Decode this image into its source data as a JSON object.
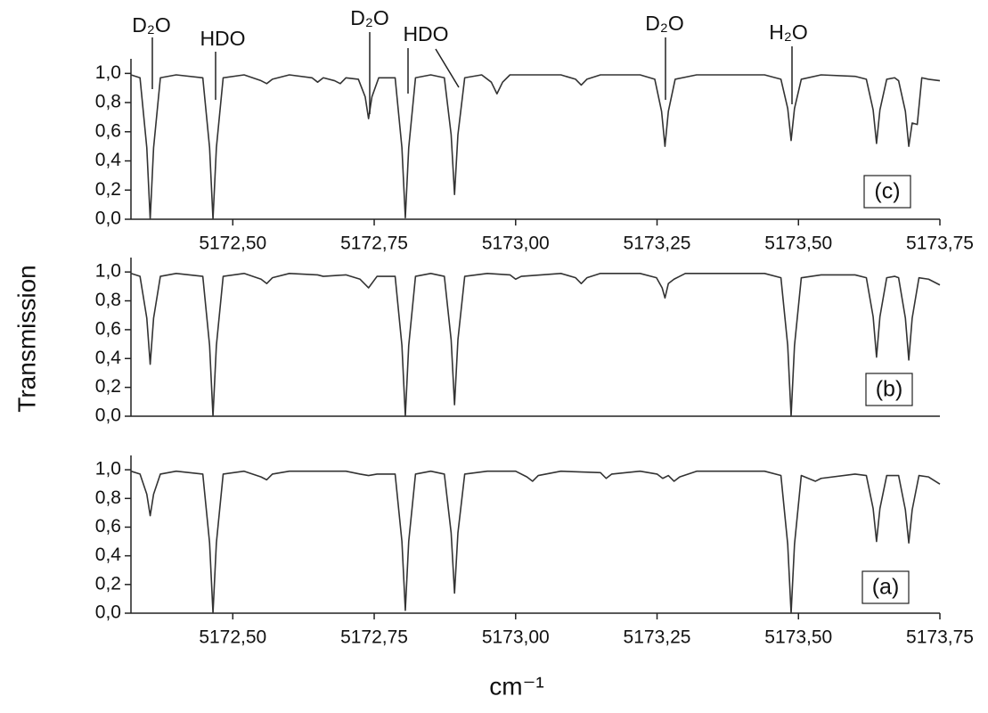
{
  "chart_data": [
    {
      "type": "line",
      "panel_label": "(c)",
      "color": "#333333",
      "grid": false,
      "annotations": [
        "D₂O",
        "HDO",
        "D₂O",
        "HDO",
        "D₂O",
        "H₂O"
      ],
      "xlim": [
        5172.32,
        5173.75
      ],
      "ylim": [
        0,
        1.1
      ],
      "xticks": [
        {
          "value": 5172.5,
          "label": "5172,50"
        },
        {
          "value": 5172.75,
          "label": "5172,75"
        },
        {
          "value": 5173.0,
          "label": "5173,00"
        },
        {
          "value": 5173.25,
          "label": "5173,25"
        },
        {
          "value": 5173.5,
          "label": "5173,50"
        },
        {
          "value": 5173.75,
          "label": "5173,75"
        }
      ],
      "yticks": [
        {
          "value": 0,
          "label": "0,0"
        },
        {
          "value": 0.2,
          "label": "0,2"
        },
        {
          "value": 0.4,
          "label": "0,4"
        },
        {
          "value": 0.6,
          "label": "0,6"
        },
        {
          "value": 0.8,
          "label": "0,8"
        },
        {
          "value": 1,
          "label": "1,0"
        }
      ],
      "x": [
        5172.32,
        5172.336,
        5172.348,
        5172.354,
        5172.36,
        5172.372,
        5172.4,
        5172.447,
        5172.459,
        5172.465,
        5172.471,
        5172.483,
        5172.52,
        5172.55,
        5172.56,
        5172.57,
        5172.6,
        5172.64,
        5172.65,
        5172.66,
        5172.68,
        5172.69,
        5172.7,
        5172.722,
        5172.734,
        5172.74,
        5172.746,
        5172.758,
        5172.787,
        5172.799,
        5172.805,
        5172.811,
        5172.823,
        5172.85,
        5172.874,
        5172.886,
        5172.892,
        5172.898,
        5172.91,
        5172.94,
        5172.957,
        5172.967,
        5172.977,
        5172.99,
        5173.08,
        5173.106,
        5173.116,
        5173.126,
        5173.15,
        5173.22,
        5173.246,
        5173.258,
        5173.264,
        5173.27,
        5173.282,
        5173.32,
        5173.44,
        5173.469,
        5173.481,
        5173.487,
        5173.493,
        5173.505,
        5173.54,
        5173.6,
        5173.62,
        5173.632,
        5173.638,
        5173.644,
        5173.656,
        5173.67,
        5173.677,
        5173.689,
        5173.695,
        5173.701,
        5173.71,
        5173.718,
        5173.73,
        5173.75
      ],
      "values": [
        0.99,
        0.97,
        0.49,
        0.0,
        0.49,
        0.97,
        0.99,
        0.97,
        0.49,
        0.0,
        0.49,
        0.97,
        0.99,
        0.95,
        0.93,
        0.96,
        0.99,
        0.97,
        0.94,
        0.97,
        0.95,
        0.93,
        0.97,
        0.96,
        0.84,
        0.69,
        0.84,
        0.97,
        0.97,
        0.49,
        0.01,
        0.49,
        0.97,
        0.99,
        0.97,
        0.58,
        0.17,
        0.58,
        0.97,
        0.99,
        0.94,
        0.86,
        0.94,
        0.99,
        0.99,
        0.96,
        0.92,
        0.96,
        0.99,
        0.99,
        0.96,
        0.74,
        0.5,
        0.74,
        0.96,
        0.99,
        0.99,
        0.96,
        0.76,
        0.54,
        0.76,
        0.96,
        0.99,
        0.98,
        0.96,
        0.75,
        0.52,
        0.75,
        0.96,
        0.97,
        0.95,
        0.74,
        0.5,
        0.66,
        0.65,
        0.97,
        0.96,
        0.95
      ]
    },
    {
      "type": "line",
      "panel_label": "(b)",
      "color": "#333333",
      "grid": false,
      "ylabel": "Transmission",
      "xlim": [
        5172.32,
        5173.75
      ],
      "ylim": [
        0,
        1.1
      ],
      "yticks": [
        {
          "value": 0,
          "label": "0,0"
        },
        {
          "value": 0.2,
          "label": "0,2"
        },
        {
          "value": 0.4,
          "label": "0,4"
        },
        {
          "value": 0.6,
          "label": "0,6"
        },
        {
          "value": 0.8,
          "label": "0,8"
        },
        {
          "value": 1,
          "label": "1,0"
        }
      ],
      "x": [
        5172.32,
        5172.336,
        5172.348,
        5172.354,
        5172.36,
        5172.372,
        5172.4,
        5172.447,
        5172.459,
        5172.465,
        5172.471,
        5172.483,
        5172.52,
        5172.55,
        5172.56,
        5172.57,
        5172.6,
        5172.65,
        5172.66,
        5172.7,
        5172.725,
        5172.74,
        5172.755,
        5172.787,
        5172.799,
        5172.805,
        5172.811,
        5172.823,
        5172.85,
        5172.874,
        5172.886,
        5172.892,
        5172.898,
        5172.91,
        5172.95,
        5172.99,
        5173.0,
        5173.01,
        5173.08,
        5173.106,
        5173.116,
        5173.126,
        5173.15,
        5173.22,
        5173.249,
        5173.259,
        5173.264,
        5173.27,
        5173.28,
        5173.3,
        5173.44,
        5173.469,
        5173.481,
        5173.487,
        5173.493,
        5173.505,
        5173.54,
        5173.6,
        5173.62,
        5173.632,
        5173.638,
        5173.644,
        5173.656,
        5173.67,
        5173.677,
        5173.689,
        5173.695,
        5173.701,
        5173.713,
        5173.73,
        5173.75
      ],
      "values": [
        0.99,
        0.97,
        0.68,
        0.36,
        0.68,
        0.97,
        0.99,
        0.97,
        0.49,
        0.0,
        0.49,
        0.97,
        0.99,
        0.95,
        0.92,
        0.96,
        0.99,
        0.98,
        0.97,
        0.98,
        0.95,
        0.89,
        0.97,
        0.97,
        0.49,
        0.0,
        0.49,
        0.97,
        0.99,
        0.97,
        0.53,
        0.08,
        0.53,
        0.97,
        0.99,
        0.98,
        0.95,
        0.97,
        0.99,
        0.96,
        0.92,
        0.96,
        0.99,
        0.99,
        0.96,
        0.89,
        0.82,
        0.92,
        0.95,
        0.99,
        0.99,
        0.96,
        0.49,
        0.0,
        0.49,
        0.96,
        0.98,
        0.98,
        0.96,
        0.69,
        0.41,
        0.69,
        0.96,
        0.97,
        0.96,
        0.68,
        0.39,
        0.68,
        0.96,
        0.95,
        0.91
      ]
    },
    {
      "type": "line",
      "panel_label": "(a)",
      "color": "#333333",
      "grid": false,
      "xlabel": "cm⁻¹",
      "xlim": [
        5172.32,
        5173.75
      ],
      "ylim": [
        0,
        1.1
      ],
      "xticks": [
        {
          "value": 5172.5,
          "label": "5172,50"
        },
        {
          "value": 5172.75,
          "label": "5172,75"
        },
        {
          "value": 5173.0,
          "label": "5173,00"
        },
        {
          "value": 5173.25,
          "label": "5173,25"
        },
        {
          "value": 5173.5,
          "label": "5173,50"
        },
        {
          "value": 5173.75,
          "label": "5173,75"
        }
      ],
      "yticks": [
        {
          "value": 0,
          "label": "0,0"
        },
        {
          "value": 0.2,
          "label": "0,2"
        },
        {
          "value": 0.4,
          "label": "0,4"
        },
        {
          "value": 0.6,
          "label": "0,6"
        },
        {
          "value": 0.8,
          "label": "0,8"
        },
        {
          "value": 1,
          "label": "1,0"
        }
      ],
      "x": [
        5172.32,
        5172.336,
        5172.348,
        5172.354,
        5172.36,
        5172.372,
        5172.4,
        5172.447,
        5172.459,
        5172.465,
        5172.471,
        5172.483,
        5172.52,
        5172.55,
        5172.56,
        5172.57,
        5172.6,
        5172.7,
        5172.725,
        5172.74,
        5172.755,
        5172.787,
        5172.799,
        5172.805,
        5172.811,
        5172.823,
        5172.85,
        5172.874,
        5172.886,
        5172.892,
        5172.898,
        5172.91,
        5172.95,
        5173.0,
        5173.02,
        5173.03,
        5173.04,
        5173.08,
        5173.15,
        5173.16,
        5173.17,
        5173.22,
        5173.25,
        5173.26,
        5173.27,
        5173.28,
        5173.29,
        5173.32,
        5173.44,
        5173.469,
        5173.481,
        5173.487,
        5173.493,
        5173.505,
        5173.53,
        5173.54,
        5173.6,
        5173.62,
        5173.632,
        5173.638,
        5173.644,
        5173.656,
        5173.67,
        5173.677,
        5173.689,
        5173.695,
        5173.701,
        5173.713,
        5173.73,
        5173.75
      ],
      "values": [
        0.99,
        0.97,
        0.83,
        0.68,
        0.83,
        0.97,
        0.99,
        0.97,
        0.49,
        0.0,
        0.49,
        0.97,
        0.99,
        0.95,
        0.93,
        0.97,
        0.99,
        0.99,
        0.97,
        0.96,
        0.97,
        0.97,
        0.5,
        0.02,
        0.5,
        0.97,
        0.99,
        0.97,
        0.56,
        0.14,
        0.56,
        0.97,
        0.99,
        0.99,
        0.95,
        0.92,
        0.96,
        0.99,
        0.98,
        0.94,
        0.97,
        0.99,
        0.97,
        0.94,
        0.96,
        0.92,
        0.95,
        0.99,
        0.99,
        0.96,
        0.48,
        0.0,
        0.48,
        0.96,
        0.92,
        0.94,
        0.97,
        0.96,
        0.73,
        0.5,
        0.73,
        0.96,
        0.96,
        0.96,
        0.72,
        0.49,
        0.72,
        0.96,
        0.95,
        0.9
      ]
    }
  ]
}
